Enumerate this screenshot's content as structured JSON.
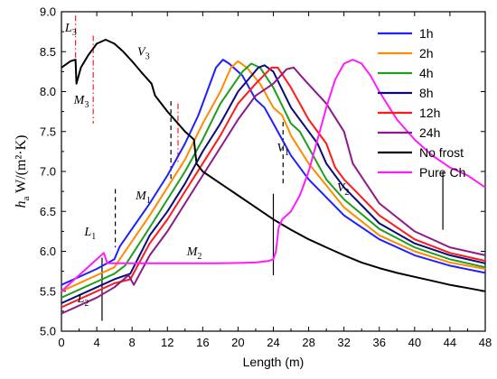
{
  "chart_data": {
    "type": "line",
    "xlabel": "Length (m)",
    "ylabel": {
      "main": "h",
      "sub": "a",
      "unit": "W/(m²·K)"
    },
    "xlim": [
      0,
      48
    ],
    "ylim": [
      5.0,
      9.0
    ],
    "xticks": [
      "0",
      "4",
      "8",
      "12",
      "16",
      "20",
      "24",
      "28",
      "32",
      "36",
      "40",
      "44",
      "48"
    ],
    "yticks": [
      "5.0",
      "5.5",
      "6.0",
      "6.5",
      "7.0",
      "7.5",
      "8.0",
      "8.5",
      "9.0"
    ],
    "legend_position": "top-right",
    "series": [
      {
        "name": "1h",
        "color": "#1f1fff",
        "points": [
          [
            0,
            5.58
          ],
          [
            4,
            5.78
          ],
          [
            6,
            5.9
          ],
          [
            6.6,
            6.06
          ],
          [
            10,
            6.6
          ],
          [
            12,
            6.95
          ],
          [
            14,
            7.35
          ],
          [
            15.5,
            7.7
          ],
          [
            16.5,
            8.0
          ],
          [
            17.5,
            8.3
          ],
          [
            18.3,
            8.4
          ],
          [
            19,
            8.35
          ],
          [
            20.5,
            8.2
          ],
          [
            22,
            7.9
          ],
          [
            23,
            7.8
          ],
          [
            24,
            7.6
          ],
          [
            26,
            7.2
          ],
          [
            28,
            6.9
          ],
          [
            32,
            6.45
          ],
          [
            36,
            6.15
          ],
          [
            40,
            5.95
          ],
          [
            44,
            5.82
          ],
          [
            48,
            5.73
          ]
        ]
      },
      {
        "name": "2h",
        "color": "#ff8c00",
        "points": [
          [
            0,
            5.5
          ],
          [
            4,
            5.7
          ],
          [
            6,
            5.8
          ],
          [
            6.6,
            5.9
          ],
          [
            10,
            6.45
          ],
          [
            12,
            6.8
          ],
          [
            14,
            7.15
          ],
          [
            16,
            7.6
          ],
          [
            18,
            8.0
          ],
          [
            19.2,
            8.3
          ],
          [
            20,
            8.38
          ],
          [
            21,
            8.3
          ],
          [
            22.5,
            8.1
          ],
          [
            24,
            7.8
          ],
          [
            25,
            7.7
          ],
          [
            26,
            7.45
          ],
          [
            28,
            7.1
          ],
          [
            32,
            6.55
          ],
          [
            36,
            6.2
          ],
          [
            40,
            6.0
          ],
          [
            44,
            5.86
          ],
          [
            48,
            5.78
          ]
        ]
      },
      {
        "name": "4h",
        "color": "#1e9e1e",
        "points": [
          [
            0,
            5.42
          ],
          [
            4,
            5.62
          ],
          [
            6,
            5.72
          ],
          [
            7.2,
            5.82
          ],
          [
            10,
            6.3
          ],
          [
            12,
            6.65
          ],
          [
            14,
            7.0
          ],
          [
            16,
            7.4
          ],
          [
            18,
            7.85
          ],
          [
            20.5,
            8.25
          ],
          [
            21.5,
            8.35
          ],
          [
            22.5,
            8.3
          ],
          [
            24,
            8.05
          ],
          [
            26,
            7.6
          ],
          [
            27,
            7.5
          ],
          [
            28,
            7.3
          ],
          [
            30,
            6.9
          ],
          [
            32,
            6.65
          ],
          [
            36,
            6.28
          ],
          [
            40,
            6.05
          ],
          [
            44,
            5.9
          ],
          [
            48,
            5.8
          ]
        ]
      },
      {
        "name": "8h",
        "color": "#0a0a7a",
        "points": [
          [
            0,
            5.35
          ],
          [
            4,
            5.55
          ],
          [
            6,
            5.65
          ],
          [
            7.8,
            5.72
          ],
          [
            10,
            6.2
          ],
          [
            12,
            6.5
          ],
          [
            14,
            6.85
          ],
          [
            16,
            7.25
          ],
          [
            18,
            7.6
          ],
          [
            20,
            8.0
          ],
          [
            22.3,
            8.3
          ],
          [
            23,
            8.33
          ],
          [
            24,
            8.25
          ],
          [
            26,
            7.8
          ],
          [
            28,
            7.5
          ],
          [
            29,
            7.35
          ],
          [
            30,
            7.1
          ],
          [
            32,
            6.8
          ],
          [
            36,
            6.35
          ],
          [
            40,
            6.1
          ],
          [
            44,
            5.95
          ],
          [
            48,
            5.85
          ]
        ]
      },
      {
        "name": "12h",
        "color": "#ff1a1a",
        "points": [
          [
            0,
            5.3
          ],
          [
            4,
            5.5
          ],
          [
            6,
            5.6
          ],
          [
            7.8,
            5.65
          ],
          [
            10,
            6.1
          ],
          [
            12,
            6.4
          ],
          [
            14,
            6.75
          ],
          [
            16,
            7.1
          ],
          [
            18,
            7.45
          ],
          [
            20,
            7.85
          ],
          [
            22,
            8.1
          ],
          [
            23.8,
            8.3
          ],
          [
            24.5,
            8.3
          ],
          [
            26,
            8.05
          ],
          [
            28,
            7.65
          ],
          [
            30,
            7.35
          ],
          [
            31,
            7.05
          ],
          [
            32,
            6.9
          ],
          [
            36,
            6.45
          ],
          [
            40,
            6.15
          ],
          [
            44,
            5.98
          ],
          [
            48,
            5.88
          ]
        ]
      },
      {
        "name": "24h",
        "color": "#8b1a8b",
        "points": [
          [
            0,
            5.22
          ],
          [
            4,
            5.42
          ],
          [
            6,
            5.55
          ],
          [
            7.6,
            5.7
          ],
          [
            8.2,
            5.58
          ],
          [
            10,
            5.95
          ],
          [
            12,
            6.25
          ],
          [
            14,
            6.6
          ],
          [
            16,
            6.95
          ],
          [
            18,
            7.3
          ],
          [
            20,
            7.65
          ],
          [
            22,
            7.95
          ],
          [
            24,
            8.1
          ],
          [
            25.5,
            8.28
          ],
          [
            26.3,
            8.3
          ],
          [
            27.5,
            8.15
          ],
          [
            30,
            7.85
          ],
          [
            32,
            7.5
          ],
          [
            33,
            7.1
          ],
          [
            36,
            6.6
          ],
          [
            40,
            6.25
          ],
          [
            44,
            6.05
          ],
          [
            48,
            5.95
          ]
        ]
      },
      {
        "name": "No frost",
        "color": "#000000",
        "points": [
          [
            0,
            8.3
          ],
          [
            1,
            8.38
          ],
          [
            1.6,
            8.4
          ],
          [
            1.7,
            8.1
          ],
          [
            2.2,
            8.3
          ],
          [
            3,
            8.45
          ],
          [
            4,
            8.6
          ],
          [
            5,
            8.65
          ],
          [
            6,
            8.6
          ],
          [
            7,
            8.5
          ],
          [
            8,
            8.38
          ],
          [
            9,
            8.25
          ],
          [
            10.2,
            8.1
          ],
          [
            10.6,
            7.95
          ],
          [
            12,
            7.75
          ],
          [
            14,
            7.5
          ],
          [
            15,
            7.4
          ],
          [
            15.3,
            7.1
          ],
          [
            16,
            7.0
          ],
          [
            18,
            6.85
          ],
          [
            20,
            6.7
          ],
          [
            22,
            6.55
          ],
          [
            24,
            6.4
          ],
          [
            26,
            6.27
          ],
          [
            28,
            6.15
          ],
          [
            30,
            6.05
          ],
          [
            32,
            5.95
          ],
          [
            34,
            5.86
          ],
          [
            36,
            5.79
          ],
          [
            38,
            5.73
          ],
          [
            40,
            5.68
          ],
          [
            42,
            5.63
          ],
          [
            44,
            5.58
          ],
          [
            46,
            5.54
          ],
          [
            48,
            5.5
          ]
        ]
      },
      {
        "name": "Pure Ch",
        "color": "#ff1aff",
        "points": [
          [
            0,
            5.5
          ],
          [
            2,
            5.7
          ],
          [
            4,
            5.9
          ],
          [
            4.8,
            5.98
          ],
          [
            5.2,
            5.85
          ],
          [
            6,
            5.85
          ],
          [
            10,
            5.85
          ],
          [
            14,
            5.85
          ],
          [
            18,
            5.85
          ],
          [
            22,
            5.86
          ],
          [
            23.5,
            5.88
          ],
          [
            24,
            5.9
          ],
          [
            24.3,
            6.0
          ],
          [
            24.6,
            6.3
          ],
          [
            25,
            6.4
          ],
          [
            26,
            6.5
          ],
          [
            27,
            6.7
          ],
          [
            28,
            7.0
          ],
          [
            29,
            7.4
          ],
          [
            30,
            7.8
          ],
          [
            31,
            8.15
          ],
          [
            32,
            8.35
          ],
          [
            33,
            8.4
          ],
          [
            34,
            8.35
          ],
          [
            35,
            8.2
          ],
          [
            36,
            8.0
          ],
          [
            38,
            7.65
          ],
          [
            40,
            7.4
          ],
          [
            42,
            7.2
          ],
          [
            44,
            7.05
          ],
          [
            46,
            6.95
          ],
          [
            48,
            6.8
          ]
        ]
      }
    ],
    "annotations": [
      {
        "main": "L",
        "sub": "3",
        "x": 0.4,
        "y": 8.75
      },
      {
        "main": "M",
        "sub": "3",
        "x": 1.4,
        "y": 7.85
      },
      {
        "main": "V",
        "sub": "3",
        "x": 8.6,
        "y": 8.45
      },
      {
        "main": "M",
        "sub": "1",
        "x": 8.4,
        "y": 6.65
      },
      {
        "main": "L",
        "sub": "1",
        "x": 2.6,
        "y": 6.2
      },
      {
        "main": "M",
        "sub": "2",
        "x": 14.2,
        "y": 5.95
      },
      {
        "main": "L",
        "sub": "2",
        "x": 1.8,
        "y": 5.36
      },
      {
        "main": "V",
        "sub": "1",
        "x": 24.4,
        "y": 7.25
      },
      {
        "main": "V",
        "sub": "2",
        "x": 31.2,
        "y": 6.75
      }
    ],
    "marker_lines": [
      {
        "x": 1.6,
        "y1": 8.95,
        "y2": 8.2,
        "style": "dashdot",
        "color": "#ff1a1a"
      },
      {
        "x": 3.6,
        "y1": 8.7,
        "y2": 7.6,
        "style": "dashdot",
        "color": "#ff1a1a"
      },
      {
        "x": 13.2,
        "y1": 7.85,
        "y2": 7.1,
        "style": "dashdot",
        "color": "#ff1a1a"
      },
      {
        "x": 12.4,
        "y1": 7.88,
        "y2": 6.9,
        "style": "dashed",
        "color": "#000000"
      },
      {
        "x": 6.1,
        "y1": 6.78,
        "y2": 6.05,
        "style": "dashed",
        "color": "#000000"
      },
      {
        "x": 25.1,
        "y1": 7.62,
        "y2": 6.85,
        "style": "dashed",
        "color": "#000000"
      },
      {
        "x": 4.6,
        "y1": 5.92,
        "y2": 5.13,
        "style": "solid",
        "color": "#000000"
      },
      {
        "x": 24.0,
        "y1": 6.72,
        "y2": 5.7,
        "style": "solid",
        "color": "#000000"
      },
      {
        "x": 43.2,
        "y1": 7.0,
        "y2": 6.27,
        "style": "solid",
        "color": "#000000"
      }
    ]
  }
}
